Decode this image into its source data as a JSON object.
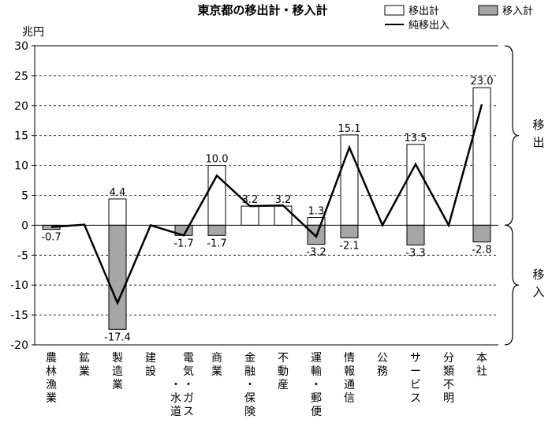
{
  "chart_data": {
    "type": "bar",
    "title": "東京都の移出計・移入計",
    "unit_label": "兆円",
    "ylim": [
      -20,
      30
    ],
    "yticks": [
      "30",
      "25",
      "20",
      "15",
      "10",
      "5",
      "0",
      "-5",
      "-10",
      "-15",
      "-20"
    ],
    "ytick_values": [
      30,
      25,
      20,
      15,
      10,
      5,
      0,
      -5,
      -10,
      -15,
      -20
    ],
    "categories": [
      {
        "id": "nourin",
        "label": "農林漁業"
      },
      {
        "id": "kougyou",
        "label": "鉱業"
      },
      {
        "id": "seizou",
        "label": "製造業"
      },
      {
        "id": "kensetsu",
        "label": "建設"
      },
      {
        "id": "denki",
        "label": "電気・ガス・水道"
      },
      {
        "id": "shougyou",
        "label": "商業"
      },
      {
        "id": "kinyuu",
        "label": "金融・保険"
      },
      {
        "id": "fudousan",
        "label": "不動産"
      },
      {
        "id": "unyu",
        "label": "運輸・郵便"
      },
      {
        "id": "jouhou",
        "label": "情報通信"
      },
      {
        "id": "koumu",
        "label": "公務"
      },
      {
        "id": "service",
        "label": "サービス"
      },
      {
        "id": "fumei",
        "label": "分類不明"
      },
      {
        "id": "honsha",
        "label": "本社"
      }
    ],
    "series": [
      {
        "name": "移出計",
        "color": "#ffffff",
        "values": [
          0,
          0,
          4.4,
          0,
          0,
          10.0,
          3.2,
          3.2,
          1.3,
          15.1,
          0,
          13.5,
          0,
          23.0
        ]
      },
      {
        "name": "移入計",
        "color": "#a6a6a6",
        "values": [
          -0.7,
          0,
          -17.4,
          0,
          -1.7,
          -1.7,
          0,
          0,
          -3.2,
          -2.1,
          0,
          -3.3,
          0,
          -2.8
        ]
      },
      {
        "name": "純移出入",
        "color": "#000000",
        "values": [
          -0.3,
          0.1,
          -13.0,
          0,
          -1.7,
          8.3,
          3.2,
          3.3,
          -1.9,
          13.0,
          0,
          10.2,
          0,
          20.2
        ]
      }
    ],
    "data_labels": [
      {
        "cat": 0,
        "text": "-0.7",
        "kind": "minus"
      },
      {
        "cat": 2,
        "text": "4.4",
        "kind": "plus"
      },
      {
        "cat": 2,
        "text": "-17.4",
        "kind": "minus"
      },
      {
        "cat": 4,
        "text": "-1.7",
        "kind": "minus"
      },
      {
        "cat": 5,
        "text": "10.0",
        "kind": "plus"
      },
      {
        "cat": 5,
        "text": "-1.7",
        "kind": "minus"
      },
      {
        "cat": 6,
        "text": "3.2",
        "kind": "plus"
      },
      {
        "cat": 7,
        "text": "3.2",
        "kind": "plus"
      },
      {
        "cat": 8,
        "text": "1.3",
        "kind": "plus"
      },
      {
        "cat": 8,
        "text": "-3.2",
        "kind": "minus"
      },
      {
        "cat": 9,
        "text": "15.1",
        "kind": "plus"
      },
      {
        "cat": 9,
        "text": "-2.1",
        "kind": "minus"
      },
      {
        "cat": 11,
        "text": "13.5",
        "kind": "plus"
      },
      {
        "cat": 11,
        "text": "-3.3",
        "kind": "minus"
      },
      {
        "cat": 13,
        "text": "23.0",
        "kind": "plus"
      },
      {
        "cat": 13,
        "text": "-2.8",
        "kind": "minus"
      }
    ],
    "legend": {
      "placement": "top-right",
      "items": [
        {
          "label": "移出計",
          "swatch": "white-box"
        },
        {
          "label": "移入計",
          "swatch": "gray-box"
        },
        {
          "label": "純移出入",
          "swatch": "line"
        }
      ]
    },
    "brackets": [
      {
        "label": "移出",
        "from": 30,
        "to": 0
      },
      {
        "label": "移入",
        "from": 0,
        "to": -20
      }
    ],
    "grid": "dashed-horizontal"
  }
}
